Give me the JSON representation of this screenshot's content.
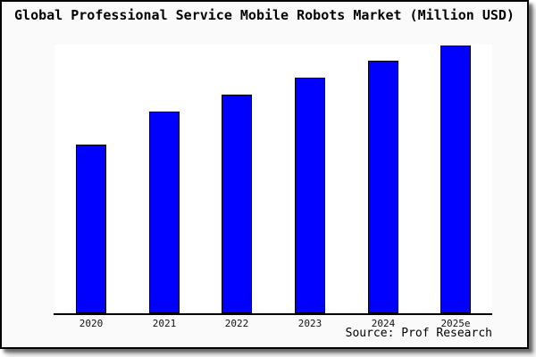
{
  "chart_data": {
    "type": "bar",
    "title": "Global Professional Service Mobile Robots Market (Million USD)",
    "categories": [
      "2020",
      "2021",
      "2022",
      "2023",
      "2024",
      "2025e"
    ],
    "values": [
      100,
      120,
      130,
      140,
      150,
      159
    ],
    "xlabel": "",
    "ylabel": "",
    "ylim": [
      0,
      159.5
    ],
    "grid": false,
    "legend": false,
    "y_axis_visible": false,
    "bar_color": "#0000ff",
    "bar_edge_color": "#000000"
  },
  "source": "Source: Prof Research",
  "colors": {
    "card_background": "#fafafa",
    "plot_background": "#ffffff",
    "card_border": "#000000",
    "axis_line": "#000000",
    "text": "#000000"
  }
}
